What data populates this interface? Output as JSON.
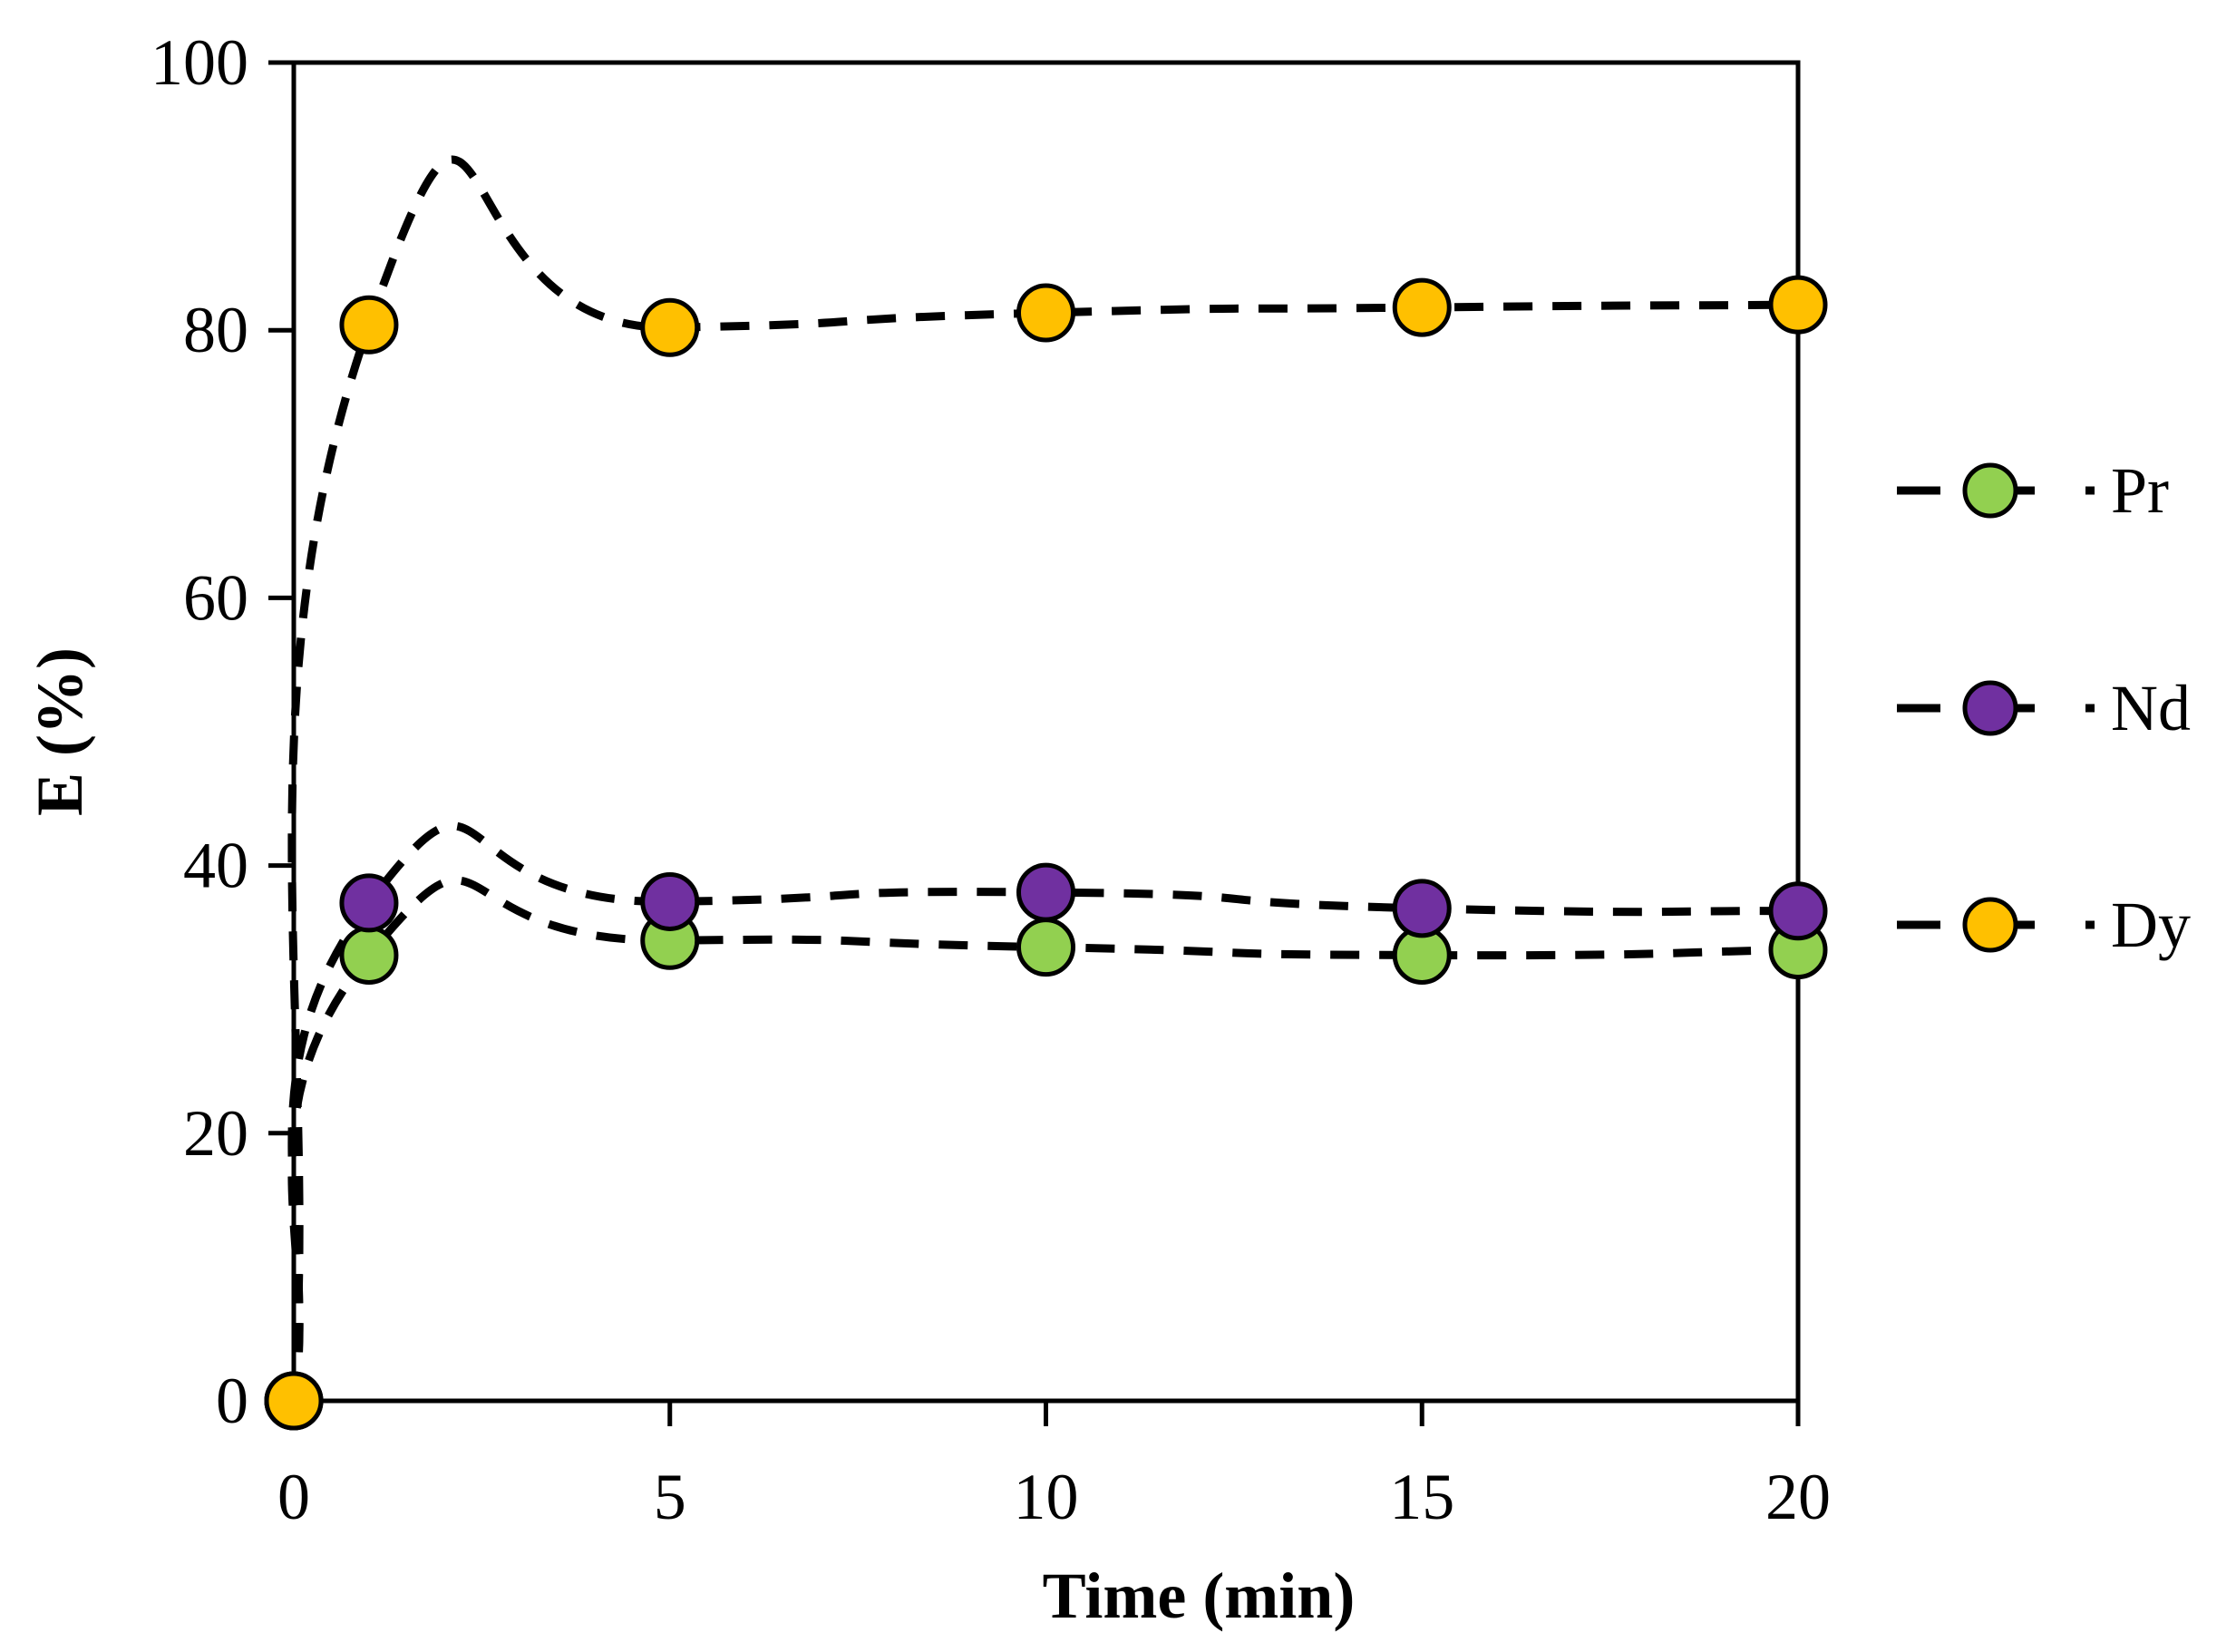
{
  "chart_data": {
    "type": "line",
    "title": "",
    "xlabel": "Time (min)",
    "ylabel": "E (%)",
    "xlim": [
      0,
      20
    ],
    "ylim": [
      0,
      100
    ],
    "x_ticks": [
      0,
      5,
      10,
      15,
      20
    ],
    "y_ticks": [
      0,
      20,
      40,
      60,
      80,
      100
    ],
    "x_tick_labels": [
      "0",
      "5",
      "10",
      "15",
      "20"
    ],
    "y_tick_labels": [
      "0",
      "20",
      "40",
      "60",
      "80",
      "100"
    ],
    "grid": false,
    "legend_position": "right",
    "line_style": "dashed smoothed",
    "x": [
      0,
      1,
      5,
      10,
      15,
      20
    ],
    "series": [
      {
        "name": "Pr",
        "color": "#92d050",
        "values": [
          0,
          33.3,
          34.4,
          33.9,
          33.3,
          33.7
        ]
      },
      {
        "name": "Nd",
        "color": "#7030a0",
        "values": [
          0,
          37.2,
          37.3,
          38.0,
          36.8,
          36.6
        ]
      },
      {
        "name": "Dy",
        "color": "#ffc000",
        "values": [
          0,
          80.4,
          80.2,
          81.3,
          81.7,
          81.9
        ]
      }
    ]
  }
}
